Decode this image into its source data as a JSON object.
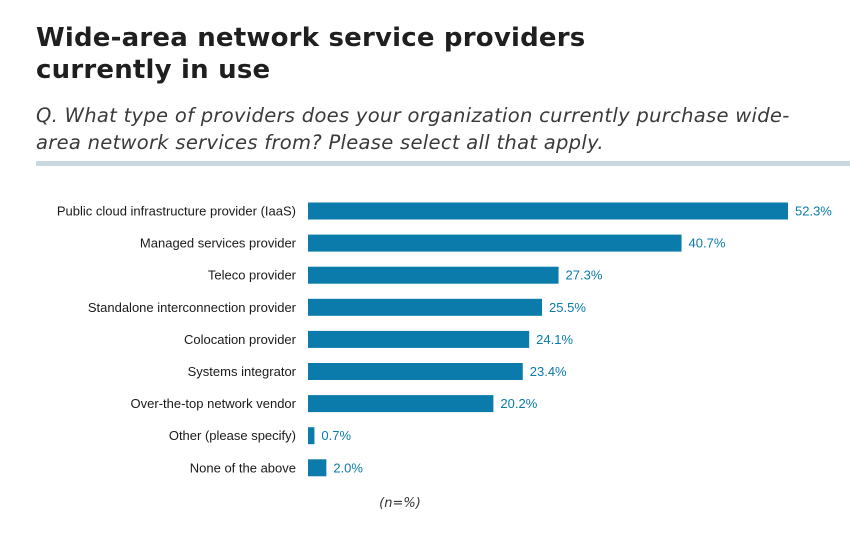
{
  "title": "Wide-area network service providers currently in use",
  "subtitle": "Q. What type of providers does your organization currently purchase wide-area network services from? Please select all that apply.",
  "footnote": "(n=%)",
  "colors": {
    "bar": "#0a7bab",
    "value_label": "#0a7bab",
    "rule": "#c9d8df"
  },
  "chart_data": {
    "type": "bar",
    "orientation": "horizontal",
    "categories": [
      "Public cloud infrastructure provider (IaaS)",
      "Managed services provider",
      "Teleco provider",
      "Standalone interconnection provider",
      "Colocation provider",
      "Systems integrator",
      "Over-the-top network vendor",
      "Other (please specify)",
      "None of the above"
    ],
    "values": [
      52.3,
      40.7,
      27.3,
      25.5,
      24.1,
      23.4,
      20.2,
      0.7,
      2.0
    ],
    "value_labels": [
      "52.3%",
      "40.7%",
      "27.3%",
      "25.5%",
      "24.1%",
      "23.4%",
      "20.2%",
      "0.7%",
      "2.0%"
    ],
    "xlim": [
      0,
      52.3
    ],
    "grid": false,
    "legend": "none"
  }
}
